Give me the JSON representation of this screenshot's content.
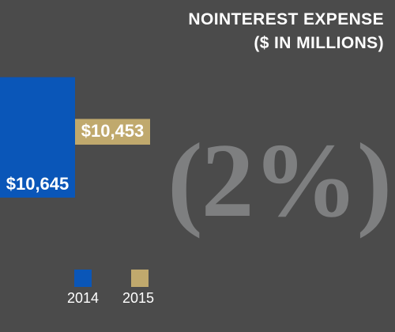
{
  "title_lines": [
    "NOINTEREST EXPENSE",
    "($ IN MILLIONS)"
  ],
  "change_label": "(2%)",
  "chart_data": {
    "type": "bar",
    "title": "NOINTEREST EXPENSE ($ IN MILLIONS)",
    "categories": [
      "2014",
      "2015"
    ],
    "values": [
      10645,
      10453
    ],
    "value_labels": [
      "$10,645",
      "$10,453"
    ],
    "colors": [
      "#0a56b8",
      "#c0a96d"
    ],
    "ylim": [
      9800,
      11000
    ],
    "grid": false,
    "legend_position": "bottom-left",
    "xlabel": "",
    "ylabel": ""
  },
  "legend": [
    {
      "label": "2014",
      "color": "#0a56b8"
    },
    {
      "label": "2015",
      "color": "#c0a96d"
    }
  ]
}
